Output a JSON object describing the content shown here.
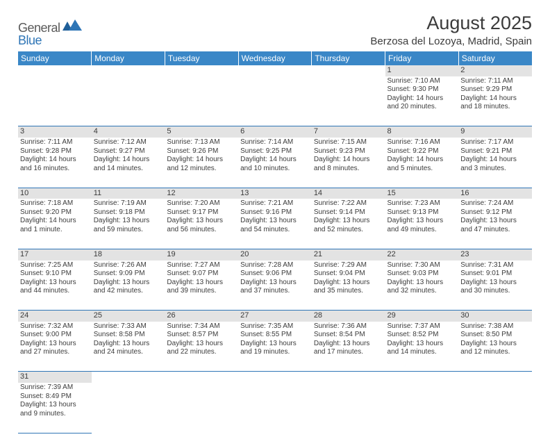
{
  "logo": {
    "part1": "General",
    "part2": "Blue"
  },
  "title": "August 2025",
  "location": "Berzosa del Lozoya, Madrid, Spain",
  "colors": {
    "header_bg": "#3a87c7",
    "header_text": "#ffffff",
    "daynum_bg": "#e3e3e3",
    "border": "#2e75b6",
    "text": "#3b3b3b",
    "logo_gray": "#5a5a5a",
    "logo_blue": "#2e75b6"
  },
  "day_headers": [
    "Sunday",
    "Monday",
    "Tuesday",
    "Wednesday",
    "Thursday",
    "Friday",
    "Saturday"
  ],
  "weeks": [
    {
      "nums": [
        "",
        "",
        "",
        "",
        "",
        "1",
        "2"
      ],
      "cells": [
        null,
        null,
        null,
        null,
        null,
        {
          "sr": "Sunrise: 7:10 AM",
          "ss": "Sunset: 9:30 PM",
          "d1": "Daylight: 14 hours",
          "d2": "and 20 minutes."
        },
        {
          "sr": "Sunrise: 7:11 AM",
          "ss": "Sunset: 9:29 PM",
          "d1": "Daylight: 14 hours",
          "d2": "and 18 minutes."
        }
      ]
    },
    {
      "nums": [
        "3",
        "4",
        "5",
        "6",
        "7",
        "8",
        "9"
      ],
      "cells": [
        {
          "sr": "Sunrise: 7:11 AM",
          "ss": "Sunset: 9:28 PM",
          "d1": "Daylight: 14 hours",
          "d2": "and 16 minutes."
        },
        {
          "sr": "Sunrise: 7:12 AM",
          "ss": "Sunset: 9:27 PM",
          "d1": "Daylight: 14 hours",
          "d2": "and 14 minutes."
        },
        {
          "sr": "Sunrise: 7:13 AM",
          "ss": "Sunset: 9:26 PM",
          "d1": "Daylight: 14 hours",
          "d2": "and 12 minutes."
        },
        {
          "sr": "Sunrise: 7:14 AM",
          "ss": "Sunset: 9:25 PM",
          "d1": "Daylight: 14 hours",
          "d2": "and 10 minutes."
        },
        {
          "sr": "Sunrise: 7:15 AM",
          "ss": "Sunset: 9:23 PM",
          "d1": "Daylight: 14 hours",
          "d2": "and 8 minutes."
        },
        {
          "sr": "Sunrise: 7:16 AM",
          "ss": "Sunset: 9:22 PM",
          "d1": "Daylight: 14 hours",
          "d2": "and 5 minutes."
        },
        {
          "sr": "Sunrise: 7:17 AM",
          "ss": "Sunset: 9:21 PM",
          "d1": "Daylight: 14 hours",
          "d2": "and 3 minutes."
        }
      ]
    },
    {
      "nums": [
        "10",
        "11",
        "12",
        "13",
        "14",
        "15",
        "16"
      ],
      "cells": [
        {
          "sr": "Sunrise: 7:18 AM",
          "ss": "Sunset: 9:20 PM",
          "d1": "Daylight: 14 hours",
          "d2": "and 1 minute."
        },
        {
          "sr": "Sunrise: 7:19 AM",
          "ss": "Sunset: 9:18 PM",
          "d1": "Daylight: 13 hours",
          "d2": "and 59 minutes."
        },
        {
          "sr": "Sunrise: 7:20 AM",
          "ss": "Sunset: 9:17 PM",
          "d1": "Daylight: 13 hours",
          "d2": "and 56 minutes."
        },
        {
          "sr": "Sunrise: 7:21 AM",
          "ss": "Sunset: 9:16 PM",
          "d1": "Daylight: 13 hours",
          "d2": "and 54 minutes."
        },
        {
          "sr": "Sunrise: 7:22 AM",
          "ss": "Sunset: 9:14 PM",
          "d1": "Daylight: 13 hours",
          "d2": "and 52 minutes."
        },
        {
          "sr": "Sunrise: 7:23 AM",
          "ss": "Sunset: 9:13 PM",
          "d1": "Daylight: 13 hours",
          "d2": "and 49 minutes."
        },
        {
          "sr": "Sunrise: 7:24 AM",
          "ss": "Sunset: 9:12 PM",
          "d1": "Daylight: 13 hours",
          "d2": "and 47 minutes."
        }
      ]
    },
    {
      "nums": [
        "17",
        "18",
        "19",
        "20",
        "21",
        "22",
        "23"
      ],
      "cells": [
        {
          "sr": "Sunrise: 7:25 AM",
          "ss": "Sunset: 9:10 PM",
          "d1": "Daylight: 13 hours",
          "d2": "and 44 minutes."
        },
        {
          "sr": "Sunrise: 7:26 AM",
          "ss": "Sunset: 9:09 PM",
          "d1": "Daylight: 13 hours",
          "d2": "and 42 minutes."
        },
        {
          "sr": "Sunrise: 7:27 AM",
          "ss": "Sunset: 9:07 PM",
          "d1": "Daylight: 13 hours",
          "d2": "and 39 minutes."
        },
        {
          "sr": "Sunrise: 7:28 AM",
          "ss": "Sunset: 9:06 PM",
          "d1": "Daylight: 13 hours",
          "d2": "and 37 minutes."
        },
        {
          "sr": "Sunrise: 7:29 AM",
          "ss": "Sunset: 9:04 PM",
          "d1": "Daylight: 13 hours",
          "d2": "and 35 minutes."
        },
        {
          "sr": "Sunrise: 7:30 AM",
          "ss": "Sunset: 9:03 PM",
          "d1": "Daylight: 13 hours",
          "d2": "and 32 minutes."
        },
        {
          "sr": "Sunrise: 7:31 AM",
          "ss": "Sunset: 9:01 PM",
          "d1": "Daylight: 13 hours",
          "d2": "and 30 minutes."
        }
      ]
    },
    {
      "nums": [
        "24",
        "25",
        "26",
        "27",
        "28",
        "29",
        "30"
      ],
      "cells": [
        {
          "sr": "Sunrise: 7:32 AM",
          "ss": "Sunset: 9:00 PM",
          "d1": "Daylight: 13 hours",
          "d2": "and 27 minutes."
        },
        {
          "sr": "Sunrise: 7:33 AM",
          "ss": "Sunset: 8:58 PM",
          "d1": "Daylight: 13 hours",
          "d2": "and 24 minutes."
        },
        {
          "sr": "Sunrise: 7:34 AM",
          "ss": "Sunset: 8:57 PM",
          "d1": "Daylight: 13 hours",
          "d2": "and 22 minutes."
        },
        {
          "sr": "Sunrise: 7:35 AM",
          "ss": "Sunset: 8:55 PM",
          "d1": "Daylight: 13 hours",
          "d2": "and 19 minutes."
        },
        {
          "sr": "Sunrise: 7:36 AM",
          "ss": "Sunset: 8:54 PM",
          "d1": "Daylight: 13 hours",
          "d2": "and 17 minutes."
        },
        {
          "sr": "Sunrise: 7:37 AM",
          "ss": "Sunset: 8:52 PM",
          "d1": "Daylight: 13 hours",
          "d2": "and 14 minutes."
        },
        {
          "sr": "Sunrise: 7:38 AM",
          "ss": "Sunset: 8:50 PM",
          "d1": "Daylight: 13 hours",
          "d2": "and 12 minutes."
        }
      ]
    },
    {
      "nums": [
        "31",
        "",
        "",
        "",
        "",
        "",
        ""
      ],
      "cells": [
        {
          "sr": "Sunrise: 7:39 AM",
          "ss": "Sunset: 8:49 PM",
          "d1": "Daylight: 13 hours",
          "d2": "and 9 minutes."
        },
        null,
        null,
        null,
        null,
        null,
        null
      ]
    }
  ]
}
